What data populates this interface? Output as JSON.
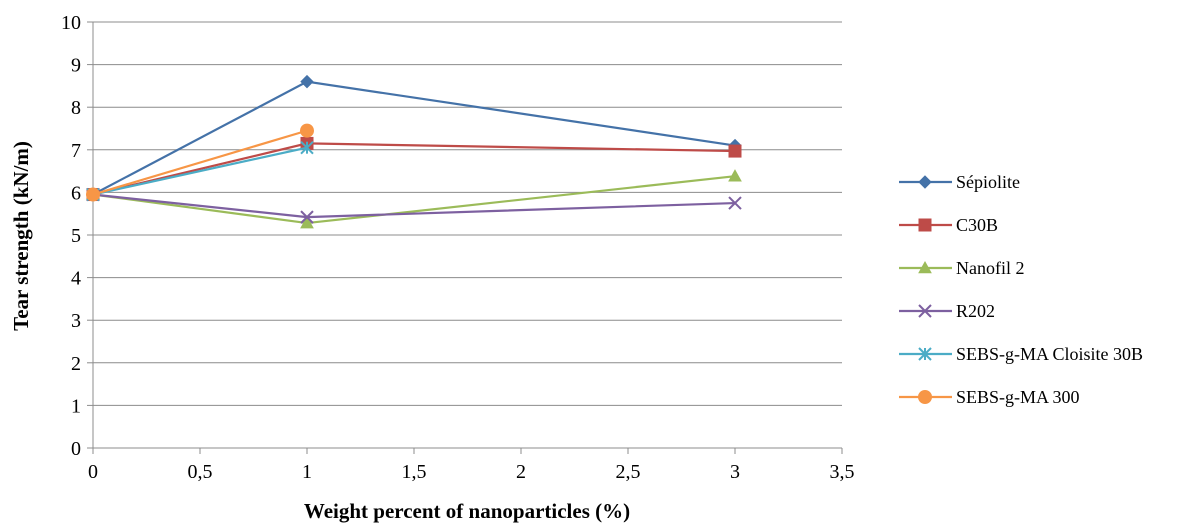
{
  "chart_data": {
    "type": "line",
    "title": "",
    "xlabel": "Weight percent of nanoparticles (%)",
    "ylabel": "Tear strength (kN/m)",
    "xlim": [
      0,
      3.5
    ],
    "ylim": [
      0,
      10
    ],
    "x_ticks": [
      "0",
      "0,5",
      "1",
      "1,5",
      "2",
      "2,5",
      "3",
      "3,5"
    ],
    "y_ticks": [
      "0",
      "1",
      "2",
      "3",
      "4",
      "5",
      "6",
      "7",
      "8",
      "9",
      "10"
    ],
    "grid": "horizontal",
    "legend_position": "right",
    "series": [
      {
        "name": "Sépiolite",
        "color": "#4472A8",
        "marker": "diamond",
        "x": [
          0,
          1,
          3
        ],
        "values": [
          5.95,
          8.6,
          7.1
        ]
      },
      {
        "name": "C30B",
        "color": "#BE4B48",
        "marker": "square",
        "x": [
          0,
          1,
          3
        ],
        "values": [
          5.95,
          7.15,
          6.97
        ]
      },
      {
        "name": "Nanofil 2",
        "color": "#9BBB59",
        "marker": "triangle",
        "x": [
          0,
          1,
          3
        ],
        "values": [
          5.95,
          5.28,
          6.38
        ]
      },
      {
        "name": "R202",
        "color": "#7D60A0",
        "marker": "x",
        "x": [
          0,
          1,
          3
        ],
        "values": [
          5.95,
          5.42,
          5.75
        ]
      },
      {
        "name": "SEBS-g-MA Cloisite 30B",
        "color": "#4BACC6",
        "marker": "star",
        "x": [
          0,
          1
        ],
        "values": [
          5.95,
          7.05
        ]
      },
      {
        "name": "SEBS-g-MA 300",
        "color": "#F79646",
        "marker": "circle",
        "x": [
          0,
          1
        ],
        "values": [
          5.95,
          7.45
        ]
      }
    ]
  }
}
